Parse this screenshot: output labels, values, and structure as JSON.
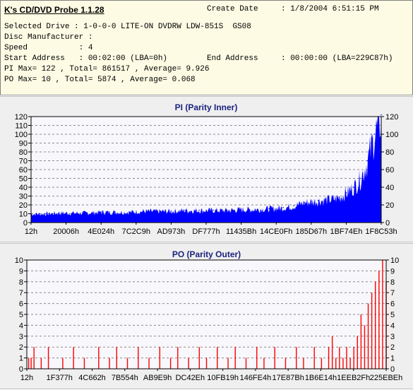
{
  "app": {
    "title": "K's CD/DVD Probe 1.1.28"
  },
  "info": {
    "create_date_label": "Create Date",
    "create_date_value": ": 1/8/2004 6:51:15 PM",
    "selected_drive": "Selected Drive : 1-0-0-0 LITE-ON DVDRW LDW-851S  GS08",
    "disc_manufacturer": "Disc Manufacturer :",
    "speed": "Speed           : 4",
    "start_address": "Start Address   : 00:02:00 (LBA=0h)",
    "end_address_label": "End Address",
    "end_address_value": ": 00:00:00 (LBA=229C87h)",
    "pi_summary": "PI Max= 122 , Total= 861517 , Average= 9.926",
    "po_summary": "PO Max= 10 , Total= 5874 , Average= 0.068"
  },
  "colors": {
    "pi_fill": "#0000ff",
    "po_fill": "#ff0000",
    "plot_bg": "#f8f8fc",
    "title": "#1a237e"
  },
  "chart_data": [
    {
      "type": "area",
      "title": "PI (Parity Inner)",
      "xlabel": "",
      "ylabel": "",
      "ylim": [
        0,
        120
      ],
      "y_ticks": [
        0,
        10,
        20,
        30,
        40,
        50,
        60,
        70,
        80,
        90,
        100,
        110,
        120
      ],
      "y_tick_labels_right": [
        0,
        20,
        40,
        60,
        80,
        100,
        120
      ],
      "grid": true,
      "x_tick_labels": [
        "12h",
        "20006h",
        "4E024h",
        "7C2C9h",
        "AD973h",
        "DF777h",
        "11435Bh",
        "14CE0Fh",
        "185D67h",
        "1BF74Eh",
        "1F8C53h"
      ],
      "x_range_lba": [
        "0h",
        "229C87h"
      ],
      "x": [
        0.0,
        0.04,
        0.08,
        0.12,
        0.16,
        0.2,
        0.24,
        0.28,
        0.32,
        0.36,
        0.4,
        0.44,
        0.48,
        0.52,
        0.56,
        0.6,
        0.64,
        0.68,
        0.72,
        0.75,
        0.78,
        0.8,
        0.82,
        0.84,
        0.86,
        0.88,
        0.9,
        0.92,
        0.94,
        0.96,
        0.98,
        1.0
      ],
      "series": [
        {
          "values": [
            10,
            10,
            11,
            11,
            11,
            12,
            12,
            12,
            13,
            13,
            13,
            14,
            14,
            14,
            14,
            15,
            15,
            16,
            17,
            19,
            23,
            24,
            25,
            26,
            27,
            29,
            34,
            40,
            50,
            70,
            100,
            122
          ]
        }
      ]
    },
    {
      "type": "bar",
      "title": "PO (Parity Outer)",
      "xlabel": "",
      "ylabel": "",
      "ylim": [
        0,
        10
      ],
      "y_ticks": [
        0,
        1,
        2,
        3,
        4,
        5,
        6,
        7,
        8,
        9,
        10
      ],
      "grid": true,
      "x_tick_labels": [
        "12h",
        "1F377h",
        "4C662h",
        "7B554h",
        "AB9E9h",
        "DC42Eh",
        "10FB19h",
        "146FE4h",
        "17E87Bh",
        "1B6E14h",
        "1EEB2Fh",
        "225EBEh"
      ],
      "x_range_lba": [
        "0h",
        "229C87h"
      ],
      "spikes": [
        {
          "x": 0.005,
          "value": 1
        },
        {
          "x": 0.012,
          "value": 1
        },
        {
          "x": 0.02,
          "value": 2
        },
        {
          "x": 0.04,
          "value": 1
        },
        {
          "x": 0.06,
          "value": 2
        },
        {
          "x": 0.1,
          "value": 1
        },
        {
          "x": 0.13,
          "value": 2
        },
        {
          "x": 0.16,
          "value": 1
        },
        {
          "x": 0.2,
          "value": 2
        },
        {
          "x": 0.23,
          "value": 1
        },
        {
          "x": 0.25,
          "value": 2
        },
        {
          "x": 0.28,
          "value": 1
        },
        {
          "x": 0.31,
          "value": 2
        },
        {
          "x": 0.34,
          "value": 1
        },
        {
          "x": 0.37,
          "value": 2
        },
        {
          "x": 0.4,
          "value": 1
        },
        {
          "x": 0.42,
          "value": 2
        },
        {
          "x": 0.45,
          "value": 1
        },
        {
          "x": 0.48,
          "value": 2
        },
        {
          "x": 0.5,
          "value": 1
        },
        {
          "x": 0.53,
          "value": 2
        },
        {
          "x": 0.56,
          "value": 1
        },
        {
          "x": 0.58,
          "value": 2
        },
        {
          "x": 0.61,
          "value": 1
        },
        {
          "x": 0.64,
          "value": 2
        },
        {
          "x": 0.66,
          "value": 1
        },
        {
          "x": 0.69,
          "value": 2
        },
        {
          "x": 0.72,
          "value": 1
        },
        {
          "x": 0.75,
          "value": 2
        },
        {
          "x": 0.77,
          "value": 1
        },
        {
          "x": 0.8,
          "value": 2
        },
        {
          "x": 0.82,
          "value": 1
        },
        {
          "x": 0.84,
          "value": 2
        },
        {
          "x": 0.85,
          "value": 3
        },
        {
          "x": 0.86,
          "value": 1
        },
        {
          "x": 0.87,
          "value": 2
        },
        {
          "x": 0.88,
          "value": 1
        },
        {
          "x": 0.89,
          "value": 2
        },
        {
          "x": 0.9,
          "value": 1
        },
        {
          "x": 0.91,
          "value": 2
        },
        {
          "x": 0.92,
          "value": 3
        },
        {
          "x": 0.93,
          "value": 5
        },
        {
          "x": 0.94,
          "value": 4
        },
        {
          "x": 0.95,
          "value": 6
        },
        {
          "x": 0.96,
          "value": 7
        },
        {
          "x": 0.97,
          "value": 8
        },
        {
          "x": 0.98,
          "value": 9
        },
        {
          "x": 0.99,
          "value": 10
        },
        {
          "x": 1.0,
          "value": 8
        }
      ]
    }
  ]
}
